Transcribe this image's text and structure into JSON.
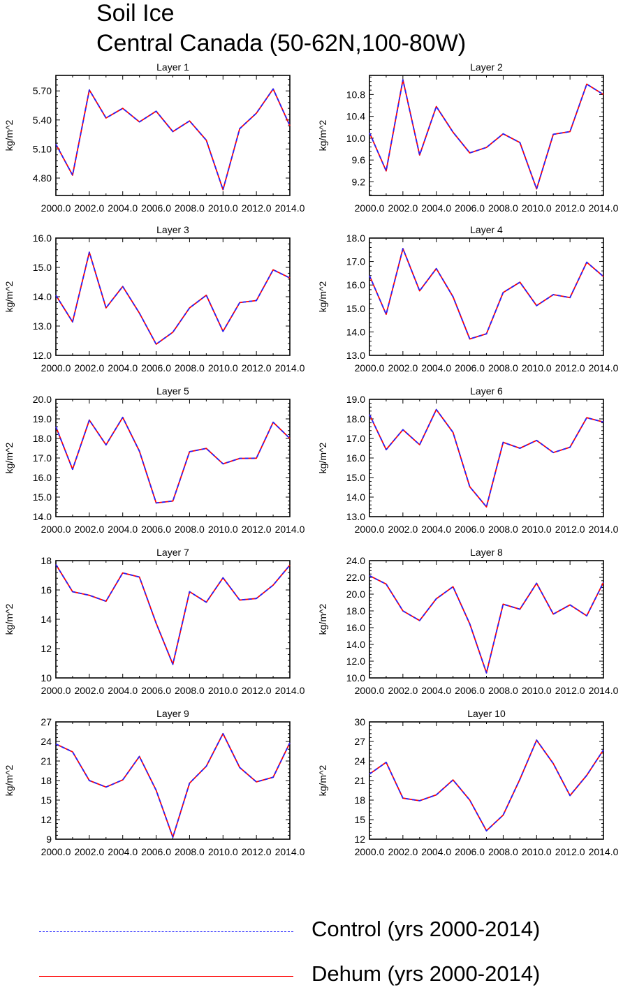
{
  "title": "Soil Ice",
  "subtitle": "Central Canada (50-62N,100-80W)",
  "legend": {
    "control": {
      "label": "Control (yrs 2000-2014)",
      "color": "#2222ff",
      "style": "dashed"
    },
    "dehum": {
      "label": "Dehum (yrs 2000-2014)",
      "color": "#ff0000",
      "style": "solid"
    }
  },
  "chart_data": [
    {
      "type": "line",
      "title": "Layer 1",
      "ylabel": "kg/m^2",
      "x": [
        2000,
        2001,
        2002,
        2003,
        2004,
        2005,
        2006,
        2007,
        2008,
        2009,
        2010,
        2011,
        2012,
        2013,
        2014
      ],
      "xticks": [
        2000,
        2002,
        2004,
        2006,
        2008,
        2010,
        2012,
        2014
      ],
      "xtick_labels": [
        "2000.0",
        "2002.0",
        "2004.0",
        "2006.0",
        "2008.0",
        "2010.0",
        "2012.0",
        "2014.0"
      ],
      "ylim": [
        4.62,
        5.86
      ],
      "yticks": [
        4.8,
        5.1,
        5.4,
        5.7
      ],
      "ytick_labels": [
        "4.80",
        "5.10",
        "5.40",
        "5.70"
      ],
      "series": [
        {
          "name": "Control (yrs 2000-2014)",
          "values": [
            5.15,
            4.83,
            5.71,
            5.42,
            5.52,
            5.38,
            5.49,
            5.28,
            5.39,
            5.19,
            4.68,
            5.31,
            5.47,
            5.72,
            5.34
          ]
        },
        {
          "name": "Dehum (yrs 2000-2014)",
          "values": [
            5.15,
            4.83,
            5.71,
            5.42,
            5.52,
            5.38,
            5.49,
            5.28,
            5.39,
            5.19,
            4.68,
            5.31,
            5.47,
            5.72,
            5.34
          ]
        }
      ]
    },
    {
      "type": "line",
      "title": "Layer 2",
      "ylabel": "kg/m^2",
      "x": [
        2000,
        2001,
        2002,
        2003,
        2004,
        2005,
        2006,
        2007,
        2008,
        2009,
        2010,
        2011,
        2012,
        2013,
        2014
      ],
      "xticks": [
        2000,
        2002,
        2004,
        2006,
        2008,
        2010,
        2012,
        2014
      ],
      "xtick_labels": [
        "2000.0",
        "2002.0",
        "2004.0",
        "2006.0",
        "2008.0",
        "2010.0",
        "2012.0",
        "2014.0"
      ],
      "ylim": [
        8.95,
        11.15
      ],
      "yticks": [
        9.2,
        9.6,
        10.0,
        10.4,
        10.8
      ],
      "ytick_labels": [
        "9.2",
        "9.6",
        "10.0",
        "10.4",
        "10.8"
      ],
      "series": [
        {
          "name": "Control (yrs 2000-2014)",
          "values": [
            10.1,
            9.4,
            11.07,
            9.69,
            10.58,
            10.11,
            9.73,
            9.83,
            10.08,
            9.92,
            9.07,
            10.07,
            10.12,
            10.99,
            10.8
          ]
        },
        {
          "name": "Dehum (yrs 2000-2014)",
          "values": [
            10.1,
            9.4,
            11.07,
            9.69,
            10.58,
            10.11,
            9.73,
            9.83,
            10.08,
            9.92,
            9.07,
            10.07,
            10.12,
            10.99,
            10.8
          ]
        }
      ]
    },
    {
      "type": "line",
      "title": "Layer 3",
      "ylabel": "kg/m^2",
      "x": [
        2000,
        2001,
        2002,
        2003,
        2004,
        2005,
        2006,
        2007,
        2008,
        2009,
        2010,
        2011,
        2012,
        2013,
        2014
      ],
      "xticks": [
        2000,
        2002,
        2004,
        2006,
        2008,
        2010,
        2012,
        2014
      ],
      "xtick_labels": [
        "2000.0",
        "2002.0",
        "2004.0",
        "2006.0",
        "2008.0",
        "2010.0",
        "2012.0",
        "2014.0"
      ],
      "ylim": [
        12.0,
        16.0
      ],
      "yticks": [
        12,
        13,
        14,
        15,
        16
      ],
      "ytick_labels": [
        "12.0",
        "13.0",
        "14.0",
        "15.0",
        "16.0"
      ],
      "series": [
        {
          "name": "Control (yrs 2000-2014)",
          "values": [
            14.05,
            13.14,
            15.52,
            13.62,
            14.35,
            13.44,
            12.38,
            12.79,
            13.62,
            14.05,
            12.82,
            13.8,
            13.87,
            14.92,
            14.64
          ]
        },
        {
          "name": "Dehum (yrs 2000-2014)",
          "values": [
            14.05,
            13.14,
            15.52,
            13.62,
            14.35,
            13.44,
            12.38,
            12.79,
            13.62,
            14.05,
            12.82,
            13.8,
            13.87,
            14.92,
            14.64
          ]
        }
      ]
    },
    {
      "type": "line",
      "title": "Layer 4",
      "ylabel": "kg/m^2",
      "x": [
        2000,
        2001,
        2002,
        2003,
        2004,
        2005,
        2006,
        2007,
        2008,
        2009,
        2010,
        2011,
        2012,
        2013,
        2014
      ],
      "xticks": [
        2000,
        2002,
        2004,
        2006,
        2008,
        2010,
        2012,
        2014
      ],
      "xtick_labels": [
        "2000.0",
        "2002.0",
        "2004.0",
        "2006.0",
        "2008.0",
        "2010.0",
        "2012.0",
        "2014.0"
      ],
      "ylim": [
        13.0,
        18.0
      ],
      "yticks": [
        13,
        14,
        15,
        16,
        17,
        18
      ],
      "ytick_labels": [
        "13.0",
        "14.0",
        "15.0",
        "16.0",
        "17.0",
        "18.0"
      ],
      "series": [
        {
          "name": "Control (yrs 2000-2014)",
          "values": [
            16.4,
            14.75,
            17.55,
            15.75,
            16.7,
            15.5,
            13.7,
            13.92,
            15.68,
            16.12,
            15.12,
            15.59,
            15.46,
            16.97,
            16.36
          ]
        },
        {
          "name": "Dehum (yrs 2000-2014)",
          "values": [
            16.4,
            14.75,
            17.55,
            15.75,
            16.7,
            15.5,
            13.7,
            13.92,
            15.68,
            16.12,
            15.12,
            15.59,
            15.46,
            16.97,
            16.36
          ]
        }
      ]
    },
    {
      "type": "line",
      "title": "Layer 5",
      "ylabel": "kg/m^2",
      "x": [
        2000,
        2001,
        2002,
        2003,
        2004,
        2005,
        2006,
        2007,
        2008,
        2009,
        2010,
        2011,
        2012,
        2013,
        2014
      ],
      "xticks": [
        2000,
        2002,
        2004,
        2006,
        2008,
        2010,
        2012,
        2014
      ],
      "xtick_labels": [
        "2000.0",
        "2002.0",
        "2004.0",
        "2006.0",
        "2008.0",
        "2010.0",
        "2012.0",
        "2014.0"
      ],
      "ylim": [
        14.0,
        20.0
      ],
      "yticks": [
        14,
        15,
        16,
        17,
        18,
        19,
        20
      ],
      "ytick_labels": [
        "14.0",
        "15.0",
        "16.0",
        "17.0",
        "18.0",
        "19.0",
        "20.0"
      ],
      "series": [
        {
          "name": "Control (yrs 2000-2014)",
          "values": [
            18.6,
            16.42,
            18.94,
            17.67,
            19.08,
            17.35,
            14.7,
            14.8,
            17.32,
            17.49,
            16.7,
            16.98,
            16.99,
            18.83,
            18.0
          ]
        },
        {
          "name": "Dehum (yrs 2000-2014)",
          "values": [
            18.6,
            16.42,
            18.94,
            17.67,
            19.08,
            17.35,
            14.7,
            14.8,
            17.32,
            17.49,
            16.7,
            16.98,
            16.99,
            18.83,
            18.0
          ]
        }
      ]
    },
    {
      "type": "line",
      "title": "Layer 6",
      "ylabel": "kg/m^2",
      "x": [
        2000,
        2001,
        2002,
        2003,
        2004,
        2005,
        2006,
        2007,
        2008,
        2009,
        2010,
        2011,
        2012,
        2013,
        2014
      ],
      "xticks": [
        2000,
        2002,
        2004,
        2006,
        2008,
        2010,
        2012,
        2014
      ],
      "xtick_labels": [
        "2000.0",
        "2002.0",
        "2004.0",
        "2006.0",
        "2008.0",
        "2010.0",
        "2012.0",
        "2014.0"
      ],
      "ylim": [
        13.0,
        19.0
      ],
      "yticks": [
        13,
        14,
        15,
        16,
        17,
        18,
        19
      ],
      "ytick_labels": [
        "13.0",
        "14.0",
        "15.0",
        "16.0",
        "17.0",
        "18.0",
        "19.0"
      ],
      "series": [
        {
          "name": "Control (yrs 2000-2014)",
          "values": [
            18.22,
            16.43,
            17.45,
            16.68,
            18.48,
            17.31,
            14.53,
            13.5,
            16.8,
            16.5,
            16.9,
            16.28,
            16.55,
            18.06,
            17.84
          ]
        },
        {
          "name": "Dehum (yrs 2000-2014)",
          "values": [
            18.22,
            16.43,
            17.45,
            16.68,
            18.48,
            17.31,
            14.53,
            13.5,
            16.8,
            16.5,
            16.9,
            16.28,
            16.55,
            18.06,
            17.84
          ]
        }
      ]
    },
    {
      "type": "line",
      "title": "Layer 7",
      "ylabel": "kg/m^2",
      "x": [
        2000,
        2001,
        2002,
        2003,
        2004,
        2005,
        2006,
        2007,
        2008,
        2009,
        2010,
        2011,
        2012,
        2013,
        2014
      ],
      "xticks": [
        2000,
        2002,
        2004,
        2006,
        2008,
        2010,
        2012,
        2014
      ],
      "xtick_labels": [
        "2000.0",
        "2002.0",
        "2004.0",
        "2006.0",
        "2008.0",
        "2010.0",
        "2012.0",
        "2014.0"
      ],
      "ylim": [
        10.0,
        18.0
      ],
      "yticks": [
        10,
        12,
        14,
        16,
        18
      ],
      "ytick_labels": [
        "10",
        "12",
        "14",
        "16",
        "18"
      ],
      "series": [
        {
          "name": "Control (yrs 2000-2014)",
          "values": [
            17.74,
            15.88,
            15.64,
            15.23,
            17.16,
            16.88,
            13.73,
            10.93,
            15.88,
            15.16,
            16.83,
            15.31,
            15.42,
            16.33,
            17.69
          ]
        },
        {
          "name": "Dehum (yrs 2000-2014)",
          "values": [
            17.74,
            15.88,
            15.64,
            15.23,
            17.16,
            16.88,
            13.73,
            10.93,
            15.88,
            15.16,
            16.83,
            15.31,
            15.42,
            16.33,
            17.69
          ]
        }
      ]
    },
    {
      "type": "line",
      "title": "Layer 8",
      "ylabel": "kg/m^2",
      "x": [
        2000,
        2001,
        2002,
        2003,
        2004,
        2005,
        2006,
        2007,
        2008,
        2009,
        2010,
        2011,
        2012,
        2013,
        2014
      ],
      "xticks": [
        2000,
        2002,
        2004,
        2006,
        2008,
        2010,
        2012,
        2014
      ],
      "xtick_labels": [
        "2000.0",
        "2002.0",
        "2004.0",
        "2006.0",
        "2008.0",
        "2010.0",
        "2012.0",
        "2014.0"
      ],
      "ylim": [
        10.0,
        24.0
      ],
      "yticks": [
        10,
        12,
        14,
        16,
        18,
        20,
        22,
        24
      ],
      "ytick_labels": [
        "10.0",
        "12.0",
        "14.0",
        "16.0",
        "18.0",
        "20.0",
        "22.0",
        "24.0"
      ],
      "series": [
        {
          "name": "Control (yrs 2000-2014)",
          "values": [
            22.2,
            21.2,
            18.0,
            16.85,
            19.45,
            20.88,
            16.45,
            10.6,
            18.8,
            18.2,
            21.3,
            17.62,
            18.72,
            17.42,
            21.4
          ]
        },
        {
          "name": "Dehum (yrs 2000-2014)",
          "values": [
            22.2,
            21.2,
            18.0,
            16.85,
            19.45,
            20.88,
            16.45,
            10.6,
            18.8,
            18.2,
            21.3,
            17.62,
            18.72,
            17.42,
            21.4
          ]
        }
      ]
    },
    {
      "type": "line",
      "title": "Layer 9",
      "ylabel": "kg/m^2",
      "x": [
        2000,
        2001,
        2002,
        2003,
        2004,
        2005,
        2006,
        2007,
        2008,
        2009,
        2010,
        2011,
        2012,
        2013,
        2014
      ],
      "xticks": [
        2000,
        2002,
        2004,
        2006,
        2008,
        2010,
        2012,
        2014
      ],
      "xtick_labels": [
        "2000.0",
        "2002.0",
        "2004.0",
        "2006.0",
        "2008.0",
        "2010.0",
        "2012.0",
        "2014.0"
      ],
      "ylim": [
        9.0,
        27.0
      ],
      "yticks": [
        9,
        12,
        15,
        18,
        21,
        24,
        27
      ],
      "ytick_labels": [
        "9",
        "12",
        "15",
        "18",
        "21",
        "24",
        "27"
      ],
      "series": [
        {
          "name": "Control (yrs 2000-2014)",
          "values": [
            23.6,
            22.4,
            18.0,
            17.0,
            18.1,
            21.7,
            16.5,
            9.3,
            17.6,
            20.2,
            25.2,
            20.0,
            17.8,
            18.5,
            23.8
          ]
        },
        {
          "name": "Dehum (yrs 2000-2014)",
          "values": [
            23.6,
            22.4,
            18.0,
            17.0,
            18.1,
            21.7,
            16.5,
            9.3,
            17.6,
            20.2,
            25.2,
            20.0,
            17.8,
            18.5,
            23.8
          ]
        }
      ]
    },
    {
      "type": "line",
      "title": "Layer 10",
      "ylabel": "kg/m^2",
      "x": [
        2000,
        2001,
        2002,
        2003,
        2004,
        2005,
        2006,
        2007,
        2008,
        2009,
        2010,
        2011,
        2012,
        2013,
        2014
      ],
      "xticks": [
        2000,
        2002,
        2004,
        2006,
        2008,
        2010,
        2012,
        2014
      ],
      "xtick_labels": [
        "2000.0",
        "2002.0",
        "2004.0",
        "2006.0",
        "2008.0",
        "2010.0",
        "2012.0",
        "2014.0"
      ],
      "ylim": [
        12.0,
        30.0
      ],
      "yticks": [
        12,
        15,
        18,
        21,
        24,
        27,
        30
      ],
      "ytick_labels": [
        "12",
        "15",
        "18",
        "21",
        "24",
        "27",
        "30"
      ],
      "series": [
        {
          "name": "Control (yrs 2000-2014)",
          "values": [
            22.0,
            23.8,
            18.3,
            17.9,
            18.8,
            21.1,
            18.0,
            13.3,
            15.7,
            21.2,
            27.2,
            23.6,
            18.7,
            21.8,
            25.7
          ]
        },
        {
          "name": "Dehum (yrs 2000-2014)",
          "values": [
            22.0,
            23.8,
            18.3,
            17.9,
            18.8,
            21.1,
            18.0,
            13.3,
            15.7,
            21.2,
            27.2,
            23.6,
            18.7,
            21.8,
            25.7
          ]
        }
      ]
    }
  ]
}
